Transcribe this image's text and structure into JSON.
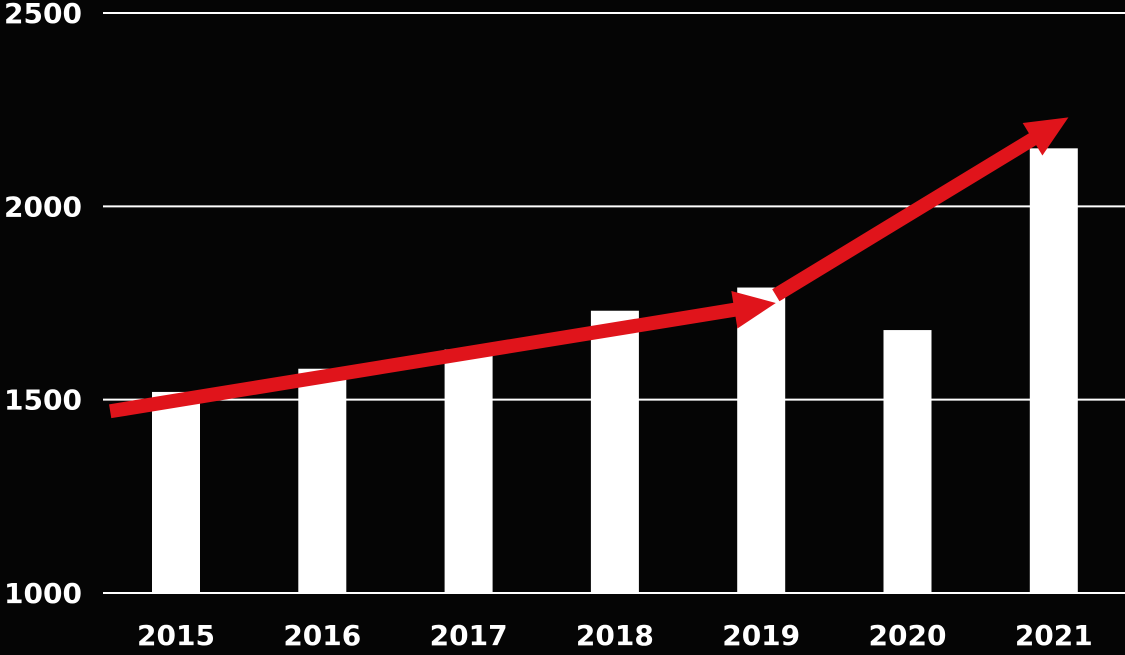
{
  "chart_data": {
    "type": "bar",
    "title": "",
    "xlabel": "",
    "ylabel": "",
    "categories": [
      "2015",
      "2016",
      "2017",
      "2018",
      "2019",
      "2020",
      "2021"
    ],
    "values": [
      1520,
      1580,
      1630,
      1730,
      1790,
      1680,
      2150
    ],
    "ylim": [
      1000,
      2500
    ],
    "y_ticks": [
      "1000",
      "1500",
      "2000",
      "2500"
    ],
    "grid": true,
    "colors": {
      "background": "#050505",
      "bars": "#ffffff",
      "grid": "#ffffff",
      "text": "#ffffff",
      "trend_arrows": "#e0141b"
    },
    "annotations": [
      {
        "type": "trend-arrow",
        "from": {
          "x": 2014.55,
          "y": 1470
        },
        "to": {
          "x": 2019.1,
          "y": 1750
        }
      },
      {
        "type": "trend-arrow",
        "from": {
          "x": 2019.1,
          "y": 1770
        },
        "to": {
          "x": 2021.1,
          "y": 2230
        }
      }
    ]
  }
}
